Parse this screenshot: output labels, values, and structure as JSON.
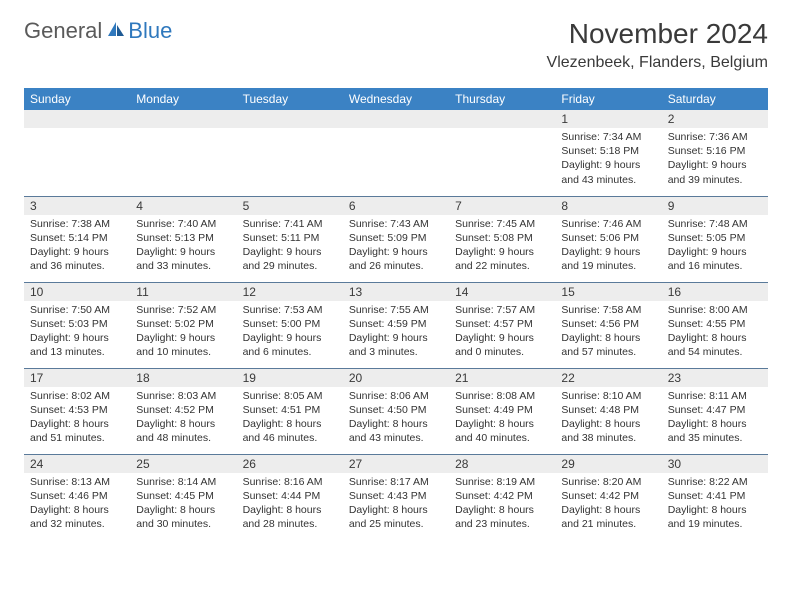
{
  "logo": {
    "part1": "General",
    "part2": "Blue"
  },
  "title": "November 2024",
  "location": "Vlezenbeek, Flanders, Belgium",
  "colors": {
    "header_bg": "#3b82c4",
    "header_text": "#ffffff",
    "daynum_bg": "#ededed",
    "text": "#3a3a3a",
    "rule": "#5a7a9a",
    "logo_gray": "#5a5a5a",
    "logo_blue": "#2f78bd"
  },
  "day_headers": [
    "Sunday",
    "Monday",
    "Tuesday",
    "Wednesday",
    "Thursday",
    "Friday",
    "Saturday"
  ],
  "weeks": [
    [
      {
        "n": "",
        "sr": "",
        "ss": "",
        "dl": ""
      },
      {
        "n": "",
        "sr": "",
        "ss": "",
        "dl": ""
      },
      {
        "n": "",
        "sr": "",
        "ss": "",
        "dl": ""
      },
      {
        "n": "",
        "sr": "",
        "ss": "",
        "dl": ""
      },
      {
        "n": "",
        "sr": "",
        "ss": "",
        "dl": ""
      },
      {
        "n": "1",
        "sr": "Sunrise: 7:34 AM",
        "ss": "Sunset: 5:18 PM",
        "dl": "Daylight: 9 hours and 43 minutes."
      },
      {
        "n": "2",
        "sr": "Sunrise: 7:36 AM",
        "ss": "Sunset: 5:16 PM",
        "dl": "Daylight: 9 hours and 39 minutes."
      }
    ],
    [
      {
        "n": "3",
        "sr": "Sunrise: 7:38 AM",
        "ss": "Sunset: 5:14 PM",
        "dl": "Daylight: 9 hours and 36 minutes."
      },
      {
        "n": "4",
        "sr": "Sunrise: 7:40 AM",
        "ss": "Sunset: 5:13 PM",
        "dl": "Daylight: 9 hours and 33 minutes."
      },
      {
        "n": "5",
        "sr": "Sunrise: 7:41 AM",
        "ss": "Sunset: 5:11 PM",
        "dl": "Daylight: 9 hours and 29 minutes."
      },
      {
        "n": "6",
        "sr": "Sunrise: 7:43 AM",
        "ss": "Sunset: 5:09 PM",
        "dl": "Daylight: 9 hours and 26 minutes."
      },
      {
        "n": "7",
        "sr": "Sunrise: 7:45 AM",
        "ss": "Sunset: 5:08 PM",
        "dl": "Daylight: 9 hours and 22 minutes."
      },
      {
        "n": "8",
        "sr": "Sunrise: 7:46 AM",
        "ss": "Sunset: 5:06 PM",
        "dl": "Daylight: 9 hours and 19 minutes."
      },
      {
        "n": "9",
        "sr": "Sunrise: 7:48 AM",
        "ss": "Sunset: 5:05 PM",
        "dl": "Daylight: 9 hours and 16 minutes."
      }
    ],
    [
      {
        "n": "10",
        "sr": "Sunrise: 7:50 AM",
        "ss": "Sunset: 5:03 PM",
        "dl": "Daylight: 9 hours and 13 minutes."
      },
      {
        "n": "11",
        "sr": "Sunrise: 7:52 AM",
        "ss": "Sunset: 5:02 PM",
        "dl": "Daylight: 9 hours and 10 minutes."
      },
      {
        "n": "12",
        "sr": "Sunrise: 7:53 AM",
        "ss": "Sunset: 5:00 PM",
        "dl": "Daylight: 9 hours and 6 minutes."
      },
      {
        "n": "13",
        "sr": "Sunrise: 7:55 AM",
        "ss": "Sunset: 4:59 PM",
        "dl": "Daylight: 9 hours and 3 minutes."
      },
      {
        "n": "14",
        "sr": "Sunrise: 7:57 AM",
        "ss": "Sunset: 4:57 PM",
        "dl": "Daylight: 9 hours and 0 minutes."
      },
      {
        "n": "15",
        "sr": "Sunrise: 7:58 AM",
        "ss": "Sunset: 4:56 PM",
        "dl": "Daylight: 8 hours and 57 minutes."
      },
      {
        "n": "16",
        "sr": "Sunrise: 8:00 AM",
        "ss": "Sunset: 4:55 PM",
        "dl": "Daylight: 8 hours and 54 minutes."
      }
    ],
    [
      {
        "n": "17",
        "sr": "Sunrise: 8:02 AM",
        "ss": "Sunset: 4:53 PM",
        "dl": "Daylight: 8 hours and 51 minutes."
      },
      {
        "n": "18",
        "sr": "Sunrise: 8:03 AM",
        "ss": "Sunset: 4:52 PM",
        "dl": "Daylight: 8 hours and 48 minutes."
      },
      {
        "n": "19",
        "sr": "Sunrise: 8:05 AM",
        "ss": "Sunset: 4:51 PM",
        "dl": "Daylight: 8 hours and 46 minutes."
      },
      {
        "n": "20",
        "sr": "Sunrise: 8:06 AM",
        "ss": "Sunset: 4:50 PM",
        "dl": "Daylight: 8 hours and 43 minutes."
      },
      {
        "n": "21",
        "sr": "Sunrise: 8:08 AM",
        "ss": "Sunset: 4:49 PM",
        "dl": "Daylight: 8 hours and 40 minutes."
      },
      {
        "n": "22",
        "sr": "Sunrise: 8:10 AM",
        "ss": "Sunset: 4:48 PM",
        "dl": "Daylight: 8 hours and 38 minutes."
      },
      {
        "n": "23",
        "sr": "Sunrise: 8:11 AM",
        "ss": "Sunset: 4:47 PM",
        "dl": "Daylight: 8 hours and 35 minutes."
      }
    ],
    [
      {
        "n": "24",
        "sr": "Sunrise: 8:13 AM",
        "ss": "Sunset: 4:46 PM",
        "dl": "Daylight: 8 hours and 32 minutes."
      },
      {
        "n": "25",
        "sr": "Sunrise: 8:14 AM",
        "ss": "Sunset: 4:45 PM",
        "dl": "Daylight: 8 hours and 30 minutes."
      },
      {
        "n": "26",
        "sr": "Sunrise: 8:16 AM",
        "ss": "Sunset: 4:44 PM",
        "dl": "Daylight: 8 hours and 28 minutes."
      },
      {
        "n": "27",
        "sr": "Sunrise: 8:17 AM",
        "ss": "Sunset: 4:43 PM",
        "dl": "Daylight: 8 hours and 25 minutes."
      },
      {
        "n": "28",
        "sr": "Sunrise: 8:19 AM",
        "ss": "Sunset: 4:42 PM",
        "dl": "Daylight: 8 hours and 23 minutes."
      },
      {
        "n": "29",
        "sr": "Sunrise: 8:20 AM",
        "ss": "Sunset: 4:42 PM",
        "dl": "Daylight: 8 hours and 21 minutes."
      },
      {
        "n": "30",
        "sr": "Sunrise: 8:22 AM",
        "ss": "Sunset: 4:41 PM",
        "dl": "Daylight: 8 hours and 19 minutes."
      }
    ]
  ]
}
